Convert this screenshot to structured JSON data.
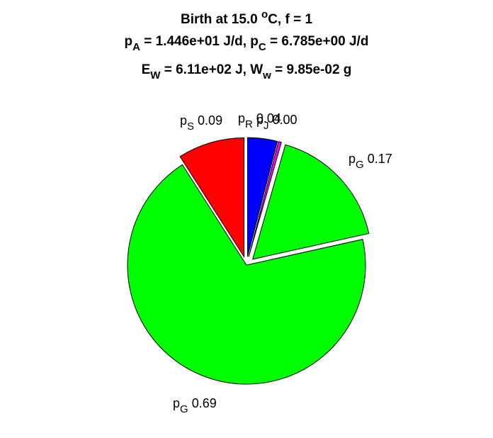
{
  "chart_data": {
    "type": "pie",
    "title_lines": [
      {
        "parts": [
          {
            "t": "Birth at 15.0 "
          },
          {
            "t": "o",
            "sup": true
          },
          {
            "t": "C, f = 1"
          }
        ]
      },
      {
        "parts": [
          {
            "t": "p"
          },
          {
            "t": "A",
            "sub": true
          },
          {
            "t": " = 1.446e+01 J/d, p"
          },
          {
            "t": "C",
            "sub": true
          },
          {
            "t": " = 6.785e+00 J/d"
          }
        ]
      },
      {
        "parts": [
          {
            "t": "E"
          },
          {
            "t": "W",
            "sub": true
          },
          {
            "t": " = 6.11e+02 J, W"
          },
          {
            "t": "w",
            "sub": true
          },
          {
            "t": " = 9.85e-02 g"
          }
        ]
      }
    ],
    "slices": [
      {
        "sym": "p",
        "sub": "R",
        "value": 0.04,
        "text": "0.04",
        "color": "#0000ff",
        "explode": true
      },
      {
        "sym": "p",
        "sub": "J",
        "value": 0.004,
        "text": "0.00",
        "color": "#ff00ff",
        "explode": true
      },
      {
        "sym": "p",
        "sub": "G",
        "value": 0.17,
        "text": "0.17",
        "color": "#00ff00",
        "explode": true
      },
      {
        "sym": "p",
        "sub": "G",
        "value": 0.69,
        "text": "0.69",
        "color": "#00ff00",
        "explode": false
      },
      {
        "sym": "p",
        "sub": "S",
        "value": 0.09,
        "text": "0.09",
        "color": "#ff0000",
        "explode": true
      }
    ]
  }
}
